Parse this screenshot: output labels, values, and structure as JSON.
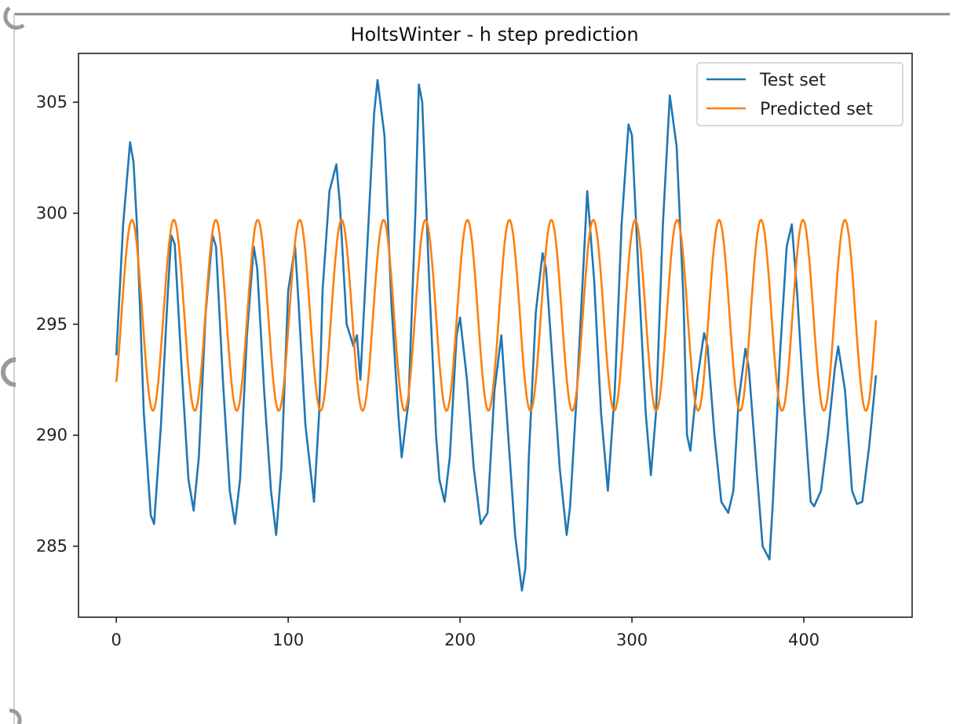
{
  "chart_data": {
    "type": "line",
    "title": "HoltsWinter - h step prediction",
    "xlabel": "",
    "ylabel": "",
    "xlim": [
      -22,
      463
    ],
    "ylim": [
      281.8,
      307.2
    ],
    "x_ticks": [
      0,
      100,
      200,
      300,
      400
    ],
    "y_ticks": [
      285,
      290,
      295,
      300,
      305
    ],
    "grid": false,
    "legend_position": "top-right",
    "series": [
      {
        "name": "Test set",
        "color": "#1f77b4",
        "x": [
          0,
          4,
          8,
          10,
          12,
          16,
          20,
          22,
          26,
          30,
          32,
          34,
          38,
          42,
          45,
          48,
          52,
          56,
          58,
          62,
          66,
          69,
          72,
          76,
          80,
          82,
          86,
          90,
          93,
          96,
          100,
          104,
          106,
          110,
          115,
          118,
          120,
          124,
          128,
          130,
          134,
          138,
          140,
          142,
          146,
          150,
          152,
          156,
          160,
          164,
          166,
          170,
          174,
          176,
          178,
          182,
          186,
          188,
          191,
          194,
          198,
          200,
          204,
          208,
          212,
          216,
          220,
          224,
          228,
          232,
          236,
          238,
          240,
          244,
          248,
          250,
          254,
          258,
          262,
          264,
          268,
          272,
          274,
          278,
          282,
          286,
          290,
          294,
          298,
          300,
          304,
          308,
          311,
          314,
          318,
          322,
          326,
          330,
          332,
          334,
          338,
          342,
          344,
          348,
          352,
          356,
          359,
          362,
          366,
          368,
          372,
          376,
          380,
          382,
          386,
          390,
          393,
          396,
          400,
          404,
          406,
          410,
          414,
          418,
          420,
          424,
          428,
          431,
          434,
          438,
          442
        ],
        "y": [
          293.6,
          299.5,
          303.2,
          302.3,
          299.5,
          291.0,
          286.4,
          286.0,
          290.5,
          296.5,
          299.0,
          298.6,
          293.0,
          288.0,
          286.6,
          289.0,
          295.5,
          299.0,
          298.5,
          292.5,
          287.5,
          286.0,
          288.0,
          294.5,
          298.5,
          297.5,
          292.0,
          287.5,
          285.5,
          288.5,
          296.5,
          298.5,
          296.0,
          290.5,
          287.0,
          291.0,
          296.5,
          301.0,
          302.2,
          300.5,
          295.0,
          294.0,
          294.5,
          292.5,
          298.5,
          304.5,
          306.0,
          303.5,
          296.0,
          291.0,
          289.0,
          291.5,
          300.0,
          305.8,
          305.0,
          297.0,
          290.0,
          288.0,
          287.0,
          289.0,
          294.5,
          295.3,
          292.5,
          288.5,
          286.0,
          286.5,
          292.0,
          294.5,
          290.0,
          285.5,
          283.0,
          284.0,
          289.0,
          295.5,
          298.2,
          297.5,
          293.0,
          288.5,
          285.5,
          286.8,
          292.0,
          298.0,
          301.0,
          297.0,
          291.0,
          287.5,
          292.0,
          299.5,
          304.0,
          303.5,
          297.0,
          291.0,
          288.2,
          291.0,
          299.5,
          305.3,
          303.0,
          296.0,
          290.0,
          289.3,
          292.5,
          294.6,
          294.0,
          290.0,
          287.0,
          286.5,
          287.5,
          291.5,
          293.9,
          293.0,
          289.0,
          285.0,
          284.4,
          287.0,
          293.5,
          298.5,
          299.5,
          296.5,
          291.5,
          287.0,
          286.8,
          287.5,
          290.0,
          293.0,
          294.0,
          292.0,
          287.5,
          286.9,
          287.0,
          289.5,
          292.7
        ]
      },
      {
        "name": "Predicted set",
        "color": "#ff7f0e",
        "period": 24.4,
        "mean": 295.4,
        "amplitude": 4.3,
        "x_start": 0,
        "x_end": 442,
        "y_start": 292.4
      }
    ]
  }
}
